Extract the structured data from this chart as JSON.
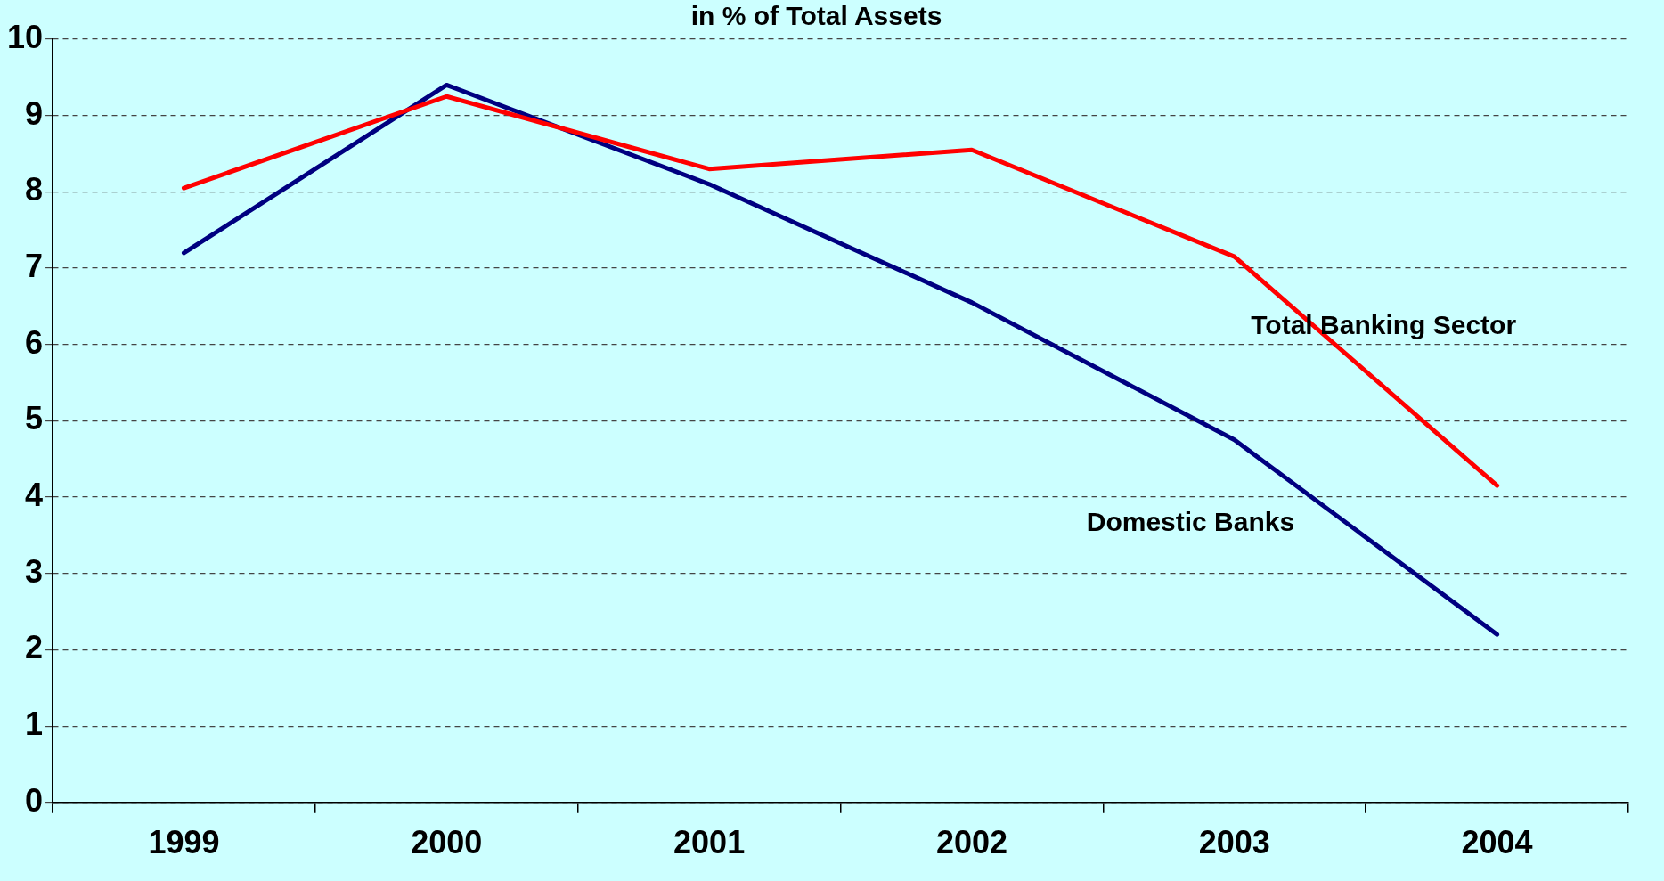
{
  "chart_data": {
    "type": "line",
    "title": "in % of Total Assets",
    "categories": [
      "1999",
      "2000",
      "2001",
      "2002",
      "2003",
      "2004"
    ],
    "series": [
      {
        "name": "Total Banking Sector",
        "color": "#ff0000",
        "values": [
          8.05,
          9.25,
          8.3,
          8.55,
          7.15,
          4.15
        ]
      },
      {
        "name": "Domestic Banks",
        "color": "#000080",
        "values": [
          7.2,
          9.4,
          8.1,
          6.55,
          4.75,
          2.2
        ]
      }
    ],
    "ylim": [
      0,
      10
    ],
    "yticks": [
      0,
      1,
      2,
      3,
      4,
      5,
      6,
      7,
      8,
      9,
      10
    ],
    "grid": "y",
    "legend": false,
    "marker": "none",
    "line_style": "solid"
  }
}
